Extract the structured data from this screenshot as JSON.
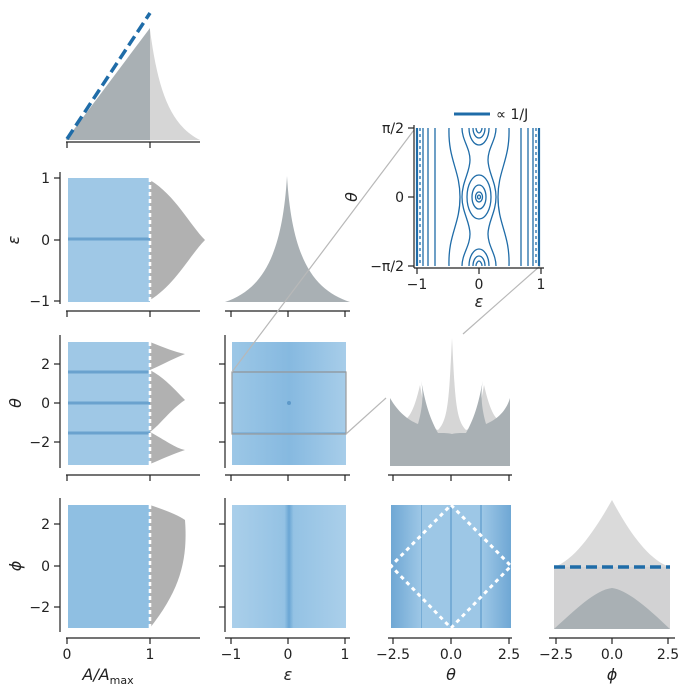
{
  "colors": {
    "blue": "#1f6ca8",
    "blue_light": "#7fb4dc",
    "gray": "#8f9aa1",
    "gray_light": "#d3d3d3",
    "zoom_line": "#b8b8b8"
  },
  "labels": {
    "A": "A/Aₘₐₓ",
    "A_main": "A/A",
    "A_sub": "max",
    "eps": "ε",
    "theta": "θ",
    "phi": "ϕ"
  },
  "ticks": {
    "A": [
      "0",
      "1"
    ],
    "eps": [
      "−1",
      "0",
      "1"
    ],
    "ang": [
      "−2",
      "0",
      "2"
    ],
    "ang_x": [
      "−2.5",
      "0.0",
      "2.5"
    ],
    "inset_x": [
      "−1",
      "0",
      "1"
    ],
    "inset_y": [
      "−π/2",
      "0",
      "π/2"
    ]
  },
  "legend": {
    "label": "∝ 1/J"
  },
  "chart_data": [
    {
      "type": "area",
      "panel": "A marginal",
      "xlim": [
        0,
        1.1
      ],
      "series": [
        {
          "name": "",
          "x": [
            0,
            1
          ],
          "y": [
            0,
            1
          ]
        }
      ]
    },
    {
      "type": "area",
      "panel": "epsilon marginal",
      "xlim": [
        -1,
        1
      ],
      "cusp_at": 0
    },
    {
      "type": "area",
      "panel": "theta marginal",
      "xlim": [
        -3.14,
        3.14
      ],
      "peaks_at": [
        -3.14,
        -1.57,
        0,
        1.57,
        3.14
      ]
    },
    {
      "type": "area",
      "panel": "phi marginal",
      "xlim": [
        -3.14,
        3.14
      ],
      "uniform_reference": true
    },
    {
      "type": "scatter",
      "panel": "inset contours",
      "xlim": [
        -1,
        1
      ],
      "ylim": [
        -1.5708,
        1.5708
      ],
      "contour_centers": [
        [
          0,
          0
        ],
        [
          0,
          1.5708
        ],
        [
          0,
          -1.5708
        ]
      ]
    }
  ]
}
